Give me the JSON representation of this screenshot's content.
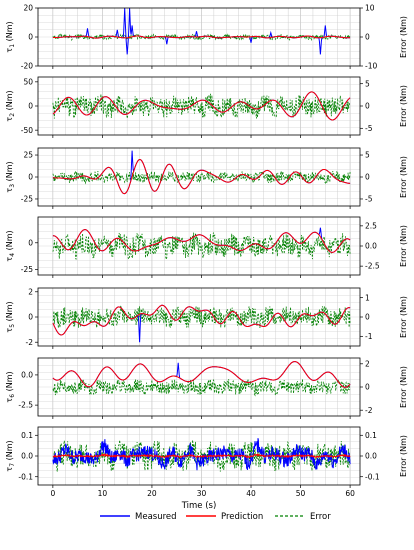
{
  "chart_data": {
    "type": "line",
    "xlabel": "Time (s)",
    "xlim": [
      -3,
      62
    ],
    "xticks": [
      0,
      10,
      20,
      30,
      40,
      50,
      60
    ],
    "grid": true,
    "legend_placement": "bottom-center",
    "series_styles": [
      {
        "name": "Measured",
        "color": "#0000ff",
        "dash": "solid"
      },
      {
        "name": "Prediction",
        "color": "#ff0000",
        "dash": "solid"
      },
      {
        "name": "Error",
        "color": "#008000",
        "dash": "dashed"
      }
    ],
    "panels": [
      {
        "ylabel": "τ1 (Nm)",
        "sub": "1",
        "ylim": [
          -20,
          20
        ],
        "yticks": [
          -20,
          0,
          20
        ],
        "elim": [
          -10,
          10
        ],
        "eticks": [
          -10,
          0,
          10
        ],
        "meas_shape": "spiky",
        "amp": 2,
        "wiggle": 5,
        "err_amp": 0.8,
        "seed": 11,
        "spikes": [
          [
            7,
            6
          ],
          [
            13,
            5
          ],
          [
            14.5,
            20
          ],
          [
            15,
            -12
          ],
          [
            15.5,
            20
          ],
          [
            16,
            8
          ],
          [
            23,
            -5
          ],
          [
            29,
            4
          ],
          [
            40,
            -4
          ],
          [
            44,
            3
          ],
          [
            54,
            -12
          ],
          [
            55,
            8
          ]
        ]
      },
      {
        "ylabel": "τ2 (Nm)",
        "sub": "2",
        "ylim": [
          -60,
          60
        ],
        "yticks": [
          -50,
          0,
          50
        ],
        "elim": [
          -6.5,
          6.5
        ],
        "eticks": [
          -5,
          0,
          5
        ],
        "meas_shape": "smooth",
        "amp": 32,
        "wiggle": 2.2,
        "err_amp": 2.2,
        "seed": 23,
        "spikes": []
      },
      {
        "ylabel": "τ3 (Nm)",
        "sub": "3",
        "ylim": [
          -33,
          33
        ],
        "yticks": [
          -25,
          0,
          25
        ],
        "elim": [
          -6.6,
          6.6
        ],
        "eticks": [
          -5,
          0,
          5
        ],
        "meas_shape": "smooth",
        "amp": 17,
        "wiggle": 3,
        "err_amp": 1.1,
        "seed": 37,
        "spikes": [
          [
            16,
            30
          ]
        ]
      },
      {
        "ylabel": "τ4 (Nm)",
        "sub": "4",
        "ylim": [
          -30,
          24
        ],
        "yticks": [
          -25,
          0
        ],
        "elim": [
          -3.6,
          3.6
        ],
        "eticks": [
          -2.5,
          0.0,
          2.5
        ],
        "meas_shape": "smooth",
        "amp": 10,
        "wiggle": 2.6,
        "err_amp": 1.3,
        "seed": 41,
        "spikes": [
          [
            54,
            14
          ]
        ]
      },
      {
        "ylabel": "τ5 (Nm)",
        "sub": "5",
        "ylim": [
          -2.3,
          2.3
        ],
        "yticks": [
          -2,
          0,
          2
        ],
        "elim": [
          -1.5,
          1.5
        ],
        "eticks": [
          -1,
          0,
          1
        ],
        "meas_shape": "smooth",
        "amp": 1.05,
        "wiggle": 3.4,
        "err_amp": 0.45,
        "seed": 53,
        "spikes": [
          [
            17.5,
            -2
          ]
        ]
      },
      {
        "ylabel": "τ6 (Nm)",
        "sub": "6",
        "ylim": [
          -3.4,
          1.4
        ],
        "yticks": [
          -2.5,
          0.0
        ],
        "elim": [
          -2.5,
          2.5
        ],
        "eticks": [
          -2,
          0,
          2
        ],
        "meas_shape": "smooth",
        "amp": 1.3,
        "wiggle": 3.2,
        "err_amp": 0.55,
        "seed": 67,
        "spikes": [
          [
            25.3,
            1.0
          ]
        ]
      },
      {
        "ylabel": "τ7 (Nm)",
        "sub": "7",
        "ylim": [
          -0.14,
          0.14
        ],
        "yticks": [
          -0.1,
          0.0,
          0.1
        ],
        "elim": [
          -0.14,
          0.14
        ],
        "eticks": [
          -0.1,
          0.0,
          0.1
        ],
        "meas_shape": "noisy",
        "amp": 0.06,
        "wiggle": 6,
        "err_amp": 0.06,
        "seed": 79,
        "spikes": []
      }
    ],
    "error_axis_label": "Error (Nm)"
  },
  "legend": {
    "measured": "Measured",
    "prediction": "Prediction",
    "error": "Error"
  }
}
